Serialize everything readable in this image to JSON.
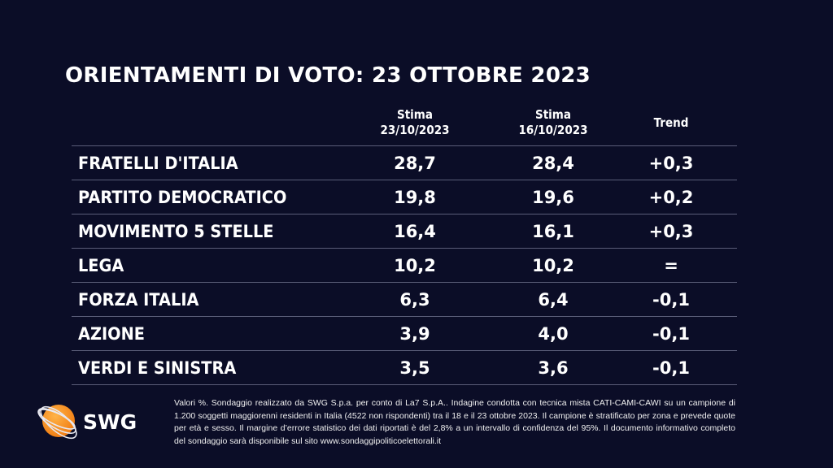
{
  "title": "ORIENTAMENTI DI VOTO: 23 OTTOBRE 2023",
  "columns": [
    {
      "line1": "Stima",
      "line2": "23/10/2023"
    },
    {
      "line1": "Stima",
      "line2": "16/10/2023"
    },
    {
      "line1": "Trend",
      "line2": ""
    }
  ],
  "rows": [
    {
      "party": "FRATELLI D'ITALIA",
      "current": "28,7",
      "previous": "28,4",
      "trend": "+0,3"
    },
    {
      "party": "PARTITO DEMOCRATICO",
      "current": "19,8",
      "previous": "19,6",
      "trend": "+0,2"
    },
    {
      "party": "MOVIMENTO 5 STELLE",
      "current": "16,4",
      "previous": "16,1",
      "trend": "+0,3"
    },
    {
      "party": "LEGA",
      "current": "10,2",
      "previous": "10,2",
      "trend": "="
    },
    {
      "party": "FORZA ITALIA",
      "current": "6,3",
      "previous": "6,4",
      "trend": "-0,1"
    },
    {
      "party": "AZIONE",
      "current": "3,9",
      "previous": "4,0",
      "trend": "-0,1"
    },
    {
      "party": "VERDI E SINISTRA",
      "current": "3,5",
      "previous": "3,6",
      "trend": "-0,1"
    }
  ],
  "note": "Valori %. Sondaggio realizzato da SWG S.p.a. per conto di La7 S.p.A.. Indagine condotta con tecnica mista CATI-CAMI-CAWI su un campione di 1.200 soggetti maggiorenni residenti in Italia (4522 non rispondenti) tra il 18 e il 23 ottobre 2023. Il campione è stratificato per zona e prevede quote per età e sesso. Il margine d’errore statistico dei dati riportati è del 2,8% a un intervallo di confidenza del 95%. Il documento informativo completo del sondaggio sarà disponibile sul sito www.sondaggipoliticoelettorali.it",
  "logo": {
    "text": "SWG",
    "color": "#f7931e"
  }
}
